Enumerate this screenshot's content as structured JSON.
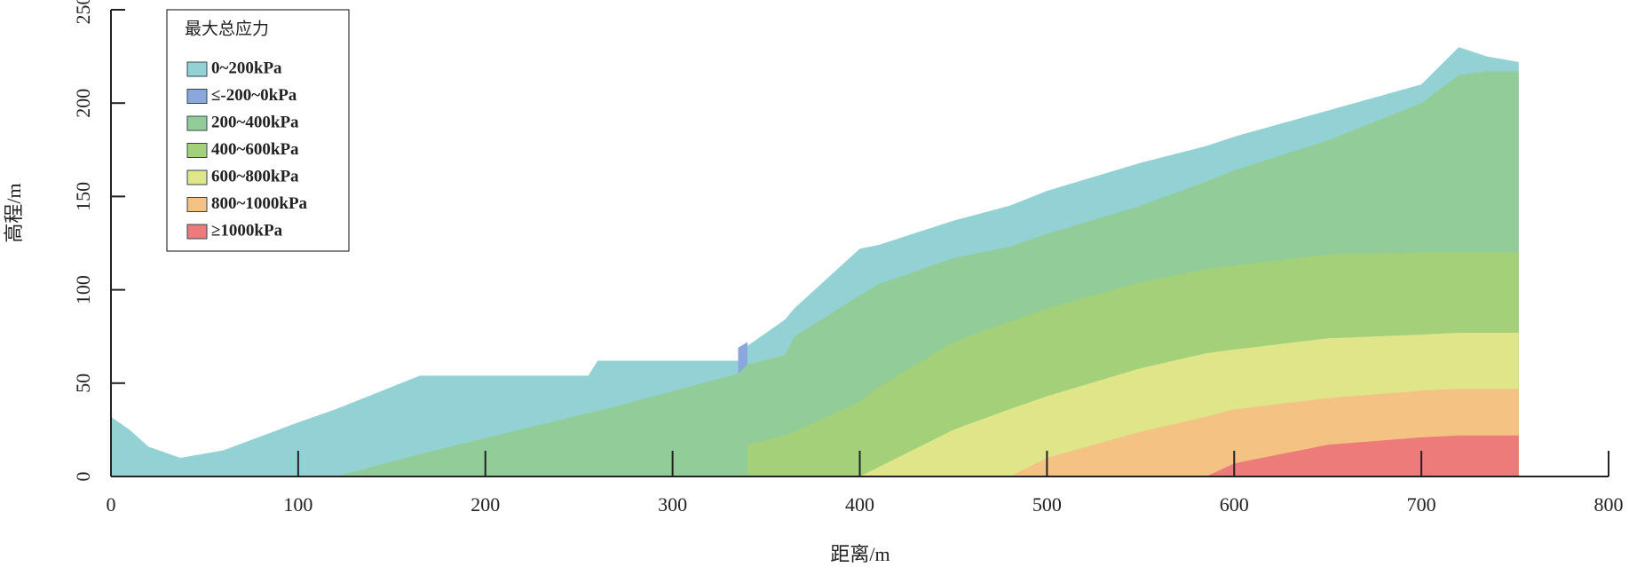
{
  "chart_data": {
    "type": "area",
    "xlabel": "距离/m",
    "ylabel": "高程/m",
    "legend_title": "最大总应力",
    "x": [
      0,
      10,
      20,
      37,
      60,
      100,
      120,
      165,
      255,
      260,
      335,
      340,
      360,
      365,
      400,
      410,
      450,
      480,
      500,
      550,
      585,
      600,
      650,
      700,
      720,
      735,
      752
    ],
    "series": [
      {
        "name": "0~200kPa",
        "color": "#93d2d4",
        "values": [
          32,
          25,
          16,
          10,
          14,
          29,
          36,
          54,
          54,
          62,
          62,
          70,
          84,
          90,
          122,
          124,
          137,
          145,
          153,
          168,
          177,
          182,
          196,
          210,
          230,
          225,
          222
        ]
      },
      {
        "name": "≤-200~0kPa",
        "color": "#8aa8dc",
        "values": [
          null,
          null,
          null,
          null,
          null,
          null,
          null,
          null,
          null,
          null,
          69,
          72,
          null,
          null,
          null,
          null,
          null,
          null,
          null,
          null,
          null,
          null,
          null,
          null,
          null,
          null,
          null
        ]
      },
      {
        "name": "200~400kPa",
        "color": "#92cc98",
        "values": [
          null,
          null,
          null,
          null,
          null,
          null,
          0,
          12,
          34,
          35,
          55,
          60,
          65,
          75,
          97,
          103,
          117,
          123,
          130,
          145,
          158,
          164,
          180,
          200,
          215,
          217,
          217
        ]
      },
      {
        "name": "400~600kPa",
        "color": "#a4d07a",
        "values": [
          null,
          null,
          null,
          null,
          null,
          null,
          null,
          null,
          null,
          null,
          null,
          17,
          22,
          24,
          40,
          48,
          72,
          83,
          90,
          104,
          111,
          113,
          119,
          120,
          120,
          120,
          120
        ]
      },
      {
        "name": "600~800kPa",
        "color": "#dfe68a",
        "values": [
          null,
          null,
          null,
          null,
          null,
          null,
          null,
          null,
          null,
          null,
          null,
          null,
          null,
          null,
          0,
          5,
          25,
          36,
          43,
          58,
          66,
          68,
          74,
          76,
          77,
          77,
          77
        ]
      },
      {
        "name": "800~1000kPa",
        "color": "#f4c282",
        "values": [
          null,
          null,
          null,
          null,
          null,
          null,
          null,
          null,
          null,
          null,
          null,
          null,
          null,
          null,
          null,
          null,
          null,
          0,
          10,
          24,
          32,
          36,
          42,
          46,
          47,
          47,
          47
        ]
      },
      {
        "name": "≥1000kPa",
        "color": "#ec7b7a",
        "values": [
          null,
          null,
          null,
          null,
          null,
          null,
          null,
          null,
          null,
          null,
          null,
          null,
          null,
          null,
          null,
          null,
          null,
          null,
          null,
          null,
          0,
          7,
          17,
          21,
          22,
          22,
          22
        ]
      }
    ],
    "xlim": [
      0,
      800
    ],
    "ylim": [
      0,
      250
    ],
    "xticks": [
      0,
      100,
      200,
      300,
      400,
      500,
      600,
      700,
      800
    ],
    "yticks": [
      0,
      50,
      100,
      150,
      200,
      250
    ]
  }
}
